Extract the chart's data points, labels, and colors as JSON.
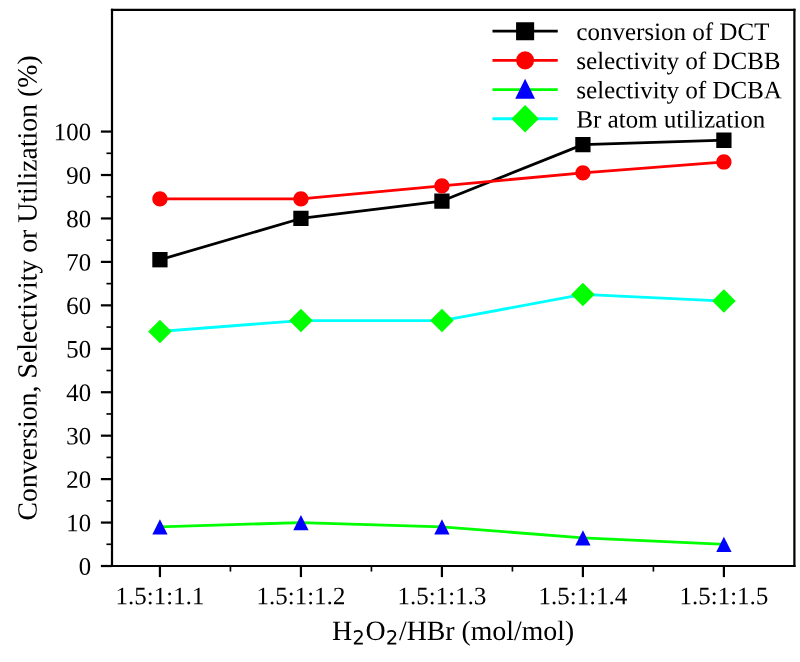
{
  "chart_data": {
    "type": "line",
    "xlabel": "H$_{2}$O$_{2}$/HBr (mol/mol)",
    "ylabel": "Conversion, Selectivity or Utilization (%)",
    "categories": [
      "1.5:1:1.1",
      "1.5:1:1.2",
      "1.5:1:1.3",
      "1.5:1:1.4",
      "1.5:1:1.5"
    ],
    "series": [
      {
        "name": "conversion of DCT",
        "color": "#000000",
        "colors": [
          "#000000",
          "#000000",
          "#000000",
          "#000000",
          "#000000"
        ],
        "marker": "square",
        "values": [
          70.5,
          80,
          84,
          97,
          98
        ]
      },
      {
        "name": "selectivity of DCBB",
        "color": "#ff0000",
        "colors": [
          "#ff0000",
          "#ff0000",
          "#ff0000",
          "#ff0000",
          "#ff0000"
        ],
        "marker": "circle",
        "values": [
          84.5,
          84.5,
          87.5,
          90.5,
          93
        ]
      },
      {
        "name": "selectivity of DCBA",
        "color": "#00ff00",
        "colors": [
          "#0000ff",
          "#0000ff",
          "#0000ff",
          "#0000ff",
          "#0000ff"
        ],
        "marker": "triangle",
        "values": [
          9,
          10,
          9,
          6.5,
          5
        ]
      },
      {
        "name": "Br atom utilization",
        "color": "#00ffff",
        "colors": [
          "#00ff00",
          "#00ff00",
          "#00ff00",
          "#00ff00",
          "#00ff00"
        ],
        "marker": "diamond",
        "values": [
          54,
          56.5,
          56.5,
          62.5,
          61
        ]
      }
    ],
    "ylim": [
      0,
      128
    ],
    "yticks": [
      0,
      10,
      20,
      30,
      40,
      50,
      60,
      70,
      80,
      90,
      100
    ],
    "legend": "top right",
    "grid": false
  }
}
